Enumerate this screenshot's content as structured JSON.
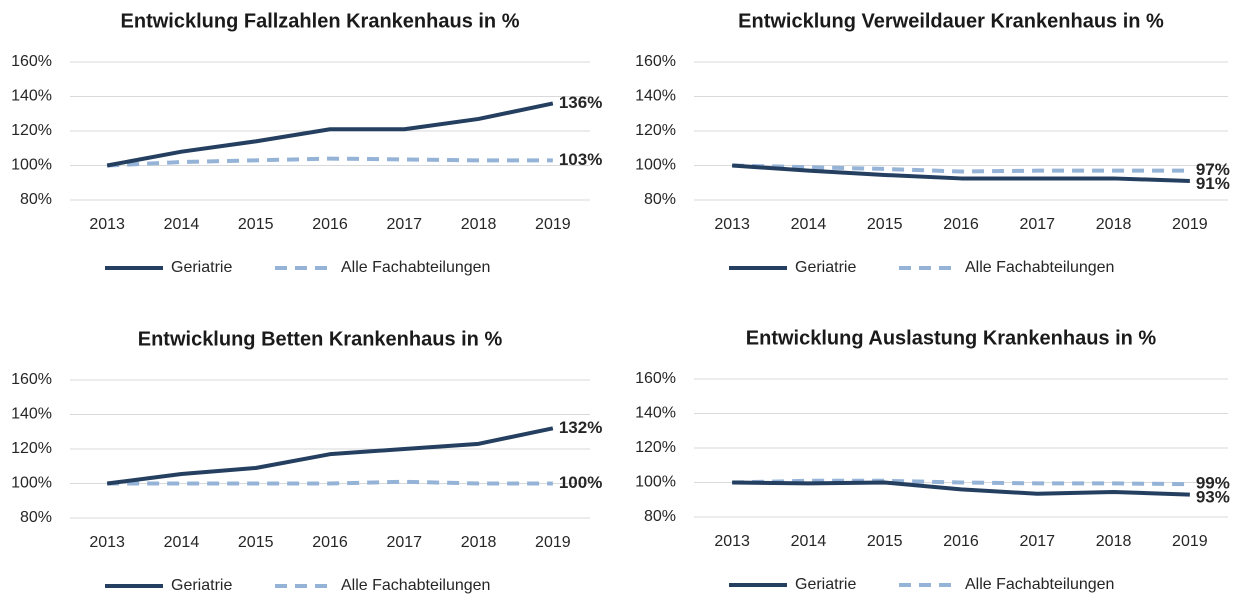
{
  "chart_data": [
    {
      "type": "line",
      "title": "Entwicklung Fallzahlen Krankenhaus in %",
      "categories": [
        "2013",
        "2014",
        "2015",
        "2016",
        "2017",
        "2018",
        "2019"
      ],
      "series": [
        {
          "name": "Geriatrie",
          "color": "#243f60",
          "values": [
            100,
            108,
            114,
            121,
            121,
            127,
            136
          ],
          "value_labels": [
            null,
            null,
            null,
            null,
            null,
            null,
            "136%"
          ]
        },
        {
          "name": "Alle Fachabteilungen",
          "color": "#95b3d7",
          "values": [
            100,
            102,
            103,
            104,
            103.5,
            103,
            103
          ],
          "value_labels": [
            null,
            null,
            null,
            null,
            null,
            null,
            "103%"
          ]
        }
      ],
      "ylim": [
        80,
        160
      ],
      "yticks": [
        {
          "value": 80,
          "label": "80%"
        },
        {
          "value": 100,
          "label": "100%"
        },
        {
          "value": 120,
          "label": "120%"
        },
        {
          "value": 140,
          "label": "140%"
        },
        {
          "value": 160,
          "label": "160%"
        }
      ],
      "grid": true
    },
    {
      "type": "line",
      "title": "Entwicklung Verweildauer Krankenhaus in %",
      "categories": [
        "2013",
        "2014",
        "2015",
        "2016",
        "2017",
        "2018",
        "2019"
      ],
      "series": [
        {
          "name": "Geriatrie",
          "color": "#243f60",
          "values": [
            100,
            97,
            94.5,
            92.5,
            92.5,
            92.5,
            91
          ],
          "value_labels": [
            null,
            null,
            null,
            null,
            null,
            null,
            "91%"
          ]
        },
        {
          "name": "Alle Fachabteilungen",
          "color": "#95b3d7",
          "values": [
            100,
            99,
            98,
            96.5,
            97,
            97,
            97
          ],
          "value_labels": [
            null,
            null,
            null,
            null,
            null,
            null,
            "97%"
          ]
        }
      ],
      "ylim": [
        80,
        160
      ],
      "yticks": [
        {
          "value": 80,
          "label": "80%"
        },
        {
          "value": 100,
          "label": "100%"
        },
        {
          "value": 120,
          "label": "120%"
        },
        {
          "value": 140,
          "label": "140%"
        },
        {
          "value": 160,
          "label": "160%"
        }
      ],
      "grid": true
    },
    {
      "type": "line",
      "title": "Entwicklung Betten Krankenhaus in %",
      "categories": [
        "2013",
        "2014",
        "2015",
        "2016",
        "2017",
        "2018",
        "2019"
      ],
      "series": [
        {
          "name": "Geriatrie",
          "color": "#243f60",
          "values": [
            100,
            105.5,
            109,
            117,
            120,
            123,
            132
          ],
          "value_labels": [
            null,
            null,
            null,
            null,
            null,
            null,
            "132%"
          ]
        },
        {
          "name": "Alle Fachabteilungen",
          "color": "#95b3d7",
          "values": [
            100,
            100,
            100,
            100,
            101,
            100,
            100
          ],
          "value_labels": [
            null,
            null,
            null,
            null,
            null,
            null,
            "100%"
          ]
        }
      ],
      "ylim": [
        80,
        160
      ],
      "yticks": [
        {
          "value": 80,
          "label": "80%"
        },
        {
          "value": 100,
          "label": "100%"
        },
        {
          "value": 120,
          "label": "120%"
        },
        {
          "value": 140,
          "label": "140%"
        },
        {
          "value": 160,
          "label": "160%"
        }
      ],
      "grid": true
    },
    {
      "type": "line",
      "title": "Entwicklung Auslastung Krankenhaus in %",
      "categories": [
        "2013",
        "2014",
        "2015",
        "2016",
        "2017",
        "2018",
        "2019"
      ],
      "series": [
        {
          "name": "Geriatrie",
          "color": "#243f60",
          "values": [
            100,
            99.5,
            100,
            96,
            93.5,
            94.5,
            93
          ],
          "value_labels": [
            null,
            null,
            null,
            null,
            null,
            null,
            "93%"
          ]
        },
        {
          "name": "Alle Fachabteilungen",
          "color": "#95b3d7",
          "values": [
            100,
            101,
            101,
            100,
            99.5,
            99.5,
            99
          ],
          "value_labels": [
            null,
            null,
            null,
            null,
            null,
            null,
            "99%"
          ]
        }
      ],
      "ylim": [
        80,
        160
      ],
      "yticks": [
        {
          "value": 80,
          "label": "80%"
        },
        {
          "value": 100,
          "label": "100%"
        },
        {
          "value": 120,
          "label": "120%"
        },
        {
          "value": 140,
          "label": "140%"
        },
        {
          "value": 160,
          "label": "160%"
        }
      ],
      "grid": true
    }
  ]
}
